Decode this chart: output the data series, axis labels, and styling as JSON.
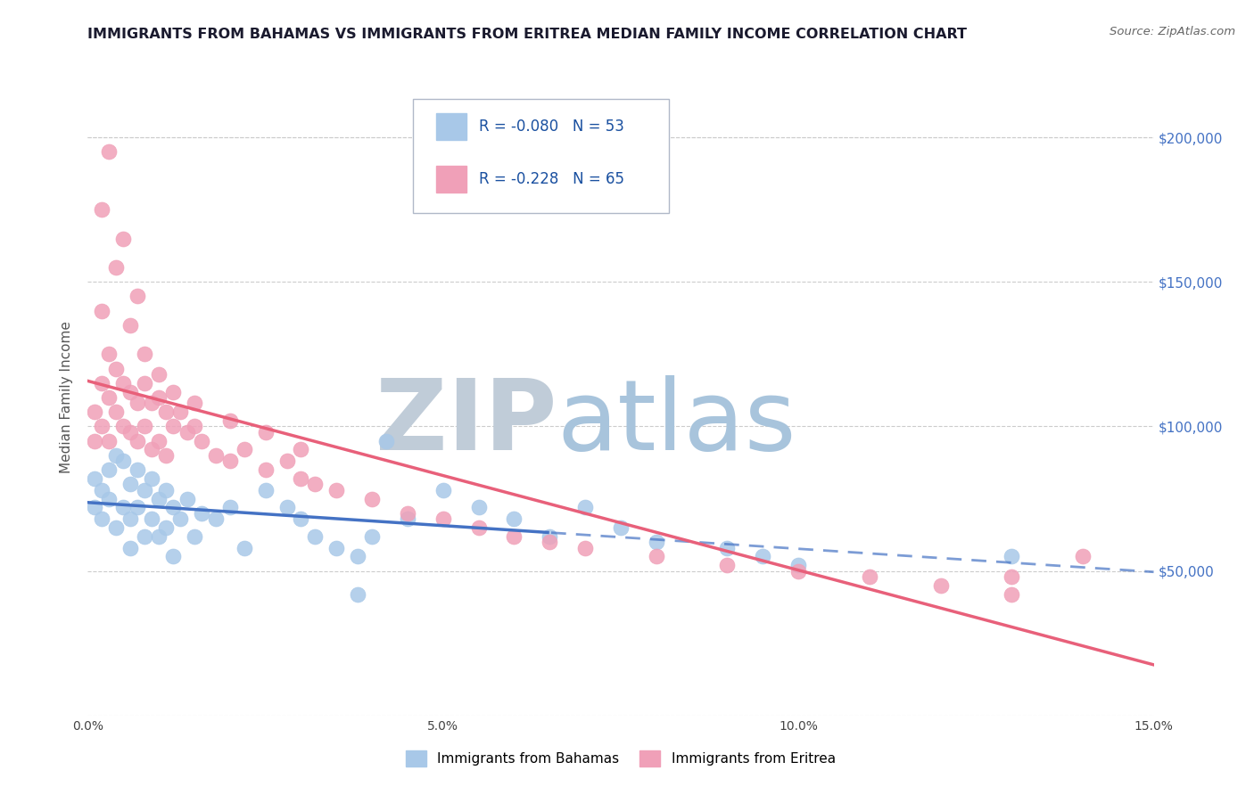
{
  "title": "IMMIGRANTS FROM BAHAMAS VS IMMIGRANTS FROM ERITREA MEDIAN FAMILY INCOME CORRELATION CHART",
  "source": "Source: ZipAtlas.com",
  "ylabel": "Median Family Income",
  "xlim": [
    0.0,
    0.15
  ],
  "ylim": [
    0,
    220000
  ],
  "yticks": [
    0,
    50000,
    100000,
    150000,
    200000
  ],
  "ytick_labels": [
    "",
    "$50,000",
    "$100,000",
    "$150,000",
    "$200,000"
  ],
  "xticks": [
    0.0,
    0.05,
    0.1,
    0.15
  ],
  "xtick_labels": [
    "0.0%",
    "5.0%",
    "10.0%",
    "15.0%"
  ],
  "bahamas_color": "#a8c8e8",
  "eritrea_color": "#f0a0b8",
  "bahamas_R": -0.08,
  "bahamas_N": 53,
  "eritrea_R": -0.228,
  "eritrea_N": 65,
  "bahamas_line_color": "#4472c4",
  "eritrea_line_color": "#e8607a",
  "watermark_ZIP_color": "#c8d8e8",
  "watermark_atlas_color": "#a8c8e8",
  "background_color": "#ffffff",
  "title_color": "#1a1a2e",
  "title_fontsize": 11.5,
  "legend_color": "#1a50a0",
  "bahamas_x": [
    0.001,
    0.001,
    0.002,
    0.002,
    0.003,
    0.003,
    0.004,
    0.004,
    0.005,
    0.005,
    0.006,
    0.006,
    0.006,
    0.007,
    0.007,
    0.008,
    0.008,
    0.009,
    0.009,
    0.01,
    0.01,
    0.011,
    0.011,
    0.012,
    0.012,
    0.013,
    0.014,
    0.015,
    0.016,
    0.018,
    0.02,
    0.022,
    0.025,
    0.028,
    0.03,
    0.032,
    0.035,
    0.038,
    0.04,
    0.045,
    0.05,
    0.055,
    0.06,
    0.065,
    0.07,
    0.075,
    0.08,
    0.09,
    0.095,
    0.1,
    0.042,
    0.13,
    0.038
  ],
  "bahamas_y": [
    82000,
    72000,
    78000,
    68000,
    85000,
    75000,
    90000,
    65000,
    88000,
    72000,
    80000,
    68000,
    58000,
    85000,
    72000,
    78000,
    62000,
    82000,
    68000,
    75000,
    62000,
    78000,
    65000,
    72000,
    55000,
    68000,
    75000,
    62000,
    70000,
    68000,
    72000,
    58000,
    78000,
    72000,
    68000,
    62000,
    58000,
    55000,
    62000,
    68000,
    78000,
    72000,
    68000,
    62000,
    72000,
    65000,
    60000,
    58000,
    55000,
    52000,
    95000,
    55000,
    42000
  ],
  "eritrea_x": [
    0.001,
    0.001,
    0.002,
    0.002,
    0.003,
    0.003,
    0.003,
    0.004,
    0.004,
    0.005,
    0.005,
    0.006,
    0.006,
    0.007,
    0.007,
    0.008,
    0.008,
    0.009,
    0.009,
    0.01,
    0.01,
    0.011,
    0.011,
    0.012,
    0.013,
    0.014,
    0.015,
    0.016,
    0.018,
    0.02,
    0.022,
    0.025,
    0.028,
    0.03,
    0.032,
    0.035,
    0.04,
    0.045,
    0.05,
    0.055,
    0.06,
    0.065,
    0.07,
    0.08,
    0.09,
    0.1,
    0.11,
    0.12,
    0.13,
    0.14,
    0.002,
    0.004,
    0.006,
    0.008,
    0.01,
    0.012,
    0.015,
    0.02,
    0.025,
    0.03,
    0.002,
    0.003,
    0.005,
    0.007,
    0.13
  ],
  "eritrea_y": [
    105000,
    95000,
    115000,
    100000,
    125000,
    110000,
    95000,
    120000,
    105000,
    115000,
    100000,
    112000,
    98000,
    108000,
    95000,
    115000,
    100000,
    108000,
    92000,
    110000,
    95000,
    105000,
    90000,
    100000,
    105000,
    98000,
    100000,
    95000,
    90000,
    88000,
    92000,
    85000,
    88000,
    82000,
    80000,
    78000,
    75000,
    70000,
    68000,
    65000,
    62000,
    60000,
    58000,
    55000,
    52000,
    50000,
    48000,
    45000,
    42000,
    55000,
    140000,
    155000,
    135000,
    125000,
    118000,
    112000,
    108000,
    102000,
    98000,
    92000,
    175000,
    195000,
    165000,
    145000,
    48000
  ]
}
